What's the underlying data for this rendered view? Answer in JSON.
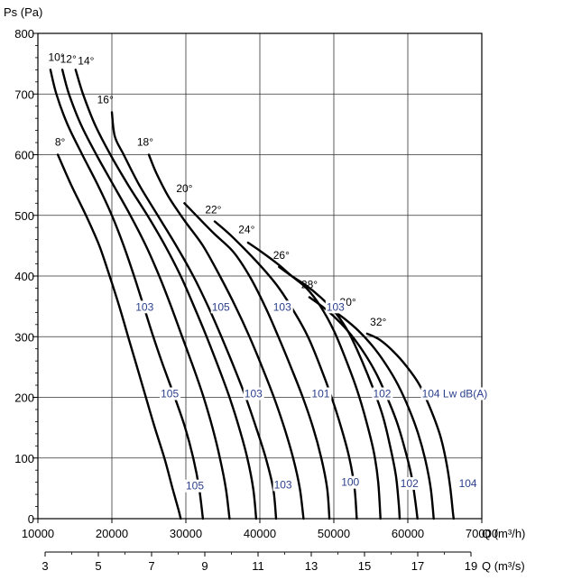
{
  "chart_data": {
    "type": "line",
    "title": "",
    "ylabel": "Ps  (Pa)",
    "xlabel": "Q (m³/h)",
    "x2label": "Q (m³/s)",
    "xlim": [
      10000,
      70000
    ],
    "ylim": [
      0,
      800
    ],
    "x_ticks": [
      "10000",
      "20000",
      "30000",
      "40000",
      "50000",
      "60000",
      "70000"
    ],
    "y_ticks": [
      "0",
      "100",
      "200",
      "300",
      "400",
      "500",
      "600",
      "700",
      "800"
    ],
    "x2_ticks": [
      "3",
      "5",
      "7",
      "9",
      "11",
      "13",
      "15",
      "17",
      "19"
    ],
    "grid": true,
    "series": [
      {
        "name": "8°",
        "points": [
          [
            12700,
            600
          ],
          [
            14500,
            550
          ],
          [
            16500,
            500
          ],
          [
            18300,
            450
          ],
          [
            19700,
            400
          ],
          [
            21000,
            350
          ],
          [
            22200,
            300
          ],
          [
            23400,
            250
          ],
          [
            24600,
            200
          ],
          [
            25800,
            150
          ],
          [
            27100,
            100
          ],
          [
            28200,
            50
          ],
          [
            29000,
            15
          ],
          [
            29300,
            0
          ]
        ]
      },
      {
        "name": "10°",
        "points": [
          [
            11700,
            740
          ],
          [
            12500,
            700
          ],
          [
            14000,
            650
          ],
          [
            16000,
            600
          ],
          [
            18100,
            550
          ],
          [
            20000,
            500
          ],
          [
            21600,
            450
          ],
          [
            23000,
            400
          ],
          [
            24300,
            350
          ],
          [
            25600,
            300
          ],
          [
            27000,
            250
          ],
          [
            28500,
            200
          ],
          [
            29900,
            150
          ],
          [
            31000,
            100
          ],
          [
            31800,
            50
          ],
          [
            32300,
            0
          ]
        ]
      },
      {
        "name": "12°",
        "points": [
          [
            13300,
            740
          ],
          [
            14200,
            700
          ],
          [
            15800,
            650
          ],
          [
            17900,
            600
          ],
          [
            20200,
            550
          ],
          [
            22500,
            500
          ],
          [
            24600,
            450
          ],
          [
            26400,
            400
          ],
          [
            28000,
            350
          ],
          [
            29500,
            300
          ],
          [
            31000,
            250
          ],
          [
            32400,
            200
          ],
          [
            33600,
            150
          ],
          [
            34600,
            100
          ],
          [
            35400,
            50
          ],
          [
            35900,
            0
          ]
        ]
      },
      {
        "name": "14°",
        "points": [
          [
            15100,
            740
          ],
          [
            16100,
            700
          ],
          [
            17700,
            650
          ],
          [
            19800,
            600
          ],
          [
            22200,
            550
          ],
          [
            24800,
            500
          ],
          [
            27200,
            450
          ],
          [
            29300,
            400
          ],
          [
            31100,
            350
          ],
          [
            32800,
            300
          ],
          [
            34400,
            250
          ],
          [
            35900,
            200
          ],
          [
            37200,
            150
          ],
          [
            38300,
            100
          ],
          [
            39100,
            50
          ],
          [
            39500,
            0
          ]
        ]
      },
      {
        "name": "16°",
        "points": [
          [
            20000,
            670
          ],
          [
            20400,
            630
          ],
          [
            21600,
            600
          ],
          [
            23700,
            550
          ],
          [
            26200,
            500
          ],
          [
            28700,
            450
          ],
          [
            31000,
            400
          ],
          [
            33000,
            350
          ],
          [
            34800,
            300
          ],
          [
            36500,
            250
          ],
          [
            38100,
            200
          ],
          [
            39500,
            150
          ],
          [
            40800,
            100
          ],
          [
            41800,
            50
          ],
          [
            42200,
            0
          ]
        ]
      },
      {
        "name": "18°",
        "points": [
          [
            25000,
            600
          ],
          [
            26000,
            570
          ],
          [
            27700,
            530
          ],
          [
            29900,
            490
          ],
          [
            32300,
            450
          ],
          [
            34600,
            400
          ],
          [
            36700,
            350
          ],
          [
            38600,
            300
          ],
          [
            40300,
            250
          ],
          [
            41900,
            200
          ],
          [
            43300,
            150
          ],
          [
            44500,
            100
          ],
          [
            45400,
            50
          ],
          [
            45900,
            0
          ]
        ]
      },
      {
        "name": "20°",
        "points": [
          [
            29800,
            520
          ],
          [
            31400,
            500
          ],
          [
            33800,
            470
          ],
          [
            36400,
            440
          ],
          [
            38600,
            400
          ],
          [
            40700,
            350
          ],
          [
            42500,
            300
          ],
          [
            44200,
            250
          ],
          [
            45800,
            200
          ],
          [
            47200,
            150
          ],
          [
            48300,
            100
          ],
          [
            49100,
            50
          ],
          [
            49400,
            0
          ]
        ]
      },
      {
        "name": "22°",
        "points": [
          [
            33900,
            490
          ],
          [
            35800,
            470
          ],
          [
            38300,
            440
          ],
          [
            40600,
            410
          ],
          [
            42600,
            380
          ],
          [
            44700,
            340
          ],
          [
            46500,
            300
          ],
          [
            48200,
            250
          ],
          [
            49700,
            200
          ],
          [
            51000,
            150
          ],
          [
            52100,
            100
          ],
          [
            52800,
            50
          ],
          [
            53100,
            0
          ]
        ]
      },
      {
        "name": "24°",
        "points": [
          [
            38400,
            455
          ],
          [
            40200,
            440
          ],
          [
            42400,
            420
          ],
          [
            44300,
            400
          ],
          [
            46300,
            380
          ],
          [
            48200,
            350
          ],
          [
            50000,
            310
          ],
          [
            51700,
            260
          ],
          [
            53200,
            210
          ],
          [
            54400,
            160
          ],
          [
            55400,
            110
          ],
          [
            56000,
            60
          ],
          [
            56300,
            0
          ]
        ]
      },
      {
        "name": "26°",
        "points": [
          [
            42600,
            415
          ],
          [
            44300,
            400
          ],
          [
            46200,
            385
          ],
          [
            48200,
            365
          ],
          [
            50200,
            340
          ],
          [
            52100,
            305
          ],
          [
            53800,
            260
          ],
          [
            55300,
            215
          ],
          [
            56600,
            170
          ],
          [
            57600,
            120
          ],
          [
            58400,
            70
          ],
          [
            58800,
            20
          ],
          [
            58900,
            0
          ]
        ]
      },
      {
        "name": "28°",
        "points": [
          [
            46700,
            365
          ],
          [
            48400,
            350
          ],
          [
            50300,
            330
          ],
          [
            52200,
            305
          ],
          [
            54000,
            275
          ],
          [
            55700,
            240
          ],
          [
            57200,
            200
          ],
          [
            58500,
            160
          ],
          [
            59600,
            115
          ],
          [
            60500,
            70
          ],
          [
            61000,
            30
          ],
          [
            61300,
            0
          ]
        ]
      },
      {
        "name": "30°",
        "points": [
          [
            49700,
            345
          ],
          [
            51400,
            330
          ],
          [
            53300,
            310
          ],
          [
            55200,
            285
          ],
          [
            57000,
            255
          ],
          [
            58700,
            220
          ],
          [
            60200,
            180
          ],
          [
            61400,
            140
          ],
          [
            62400,
            95
          ],
          [
            63100,
            50
          ],
          [
            63500,
            0
          ]
        ]
      },
      {
        "name": "32°",
        "points": [
          [
            54500,
            305
          ],
          [
            56200,
            295
          ],
          [
            58100,
            275
          ],
          [
            59900,
            250
          ],
          [
            61600,
            220
          ],
          [
            63100,
            180
          ],
          [
            64300,
            140
          ],
          [
            65100,
            100
          ],
          [
            65700,
            55
          ],
          [
            66100,
            10
          ],
          [
            66200,
            0
          ]
        ]
      }
    ],
    "angle_labels": [
      {
        "text": "8°",
        "x": 12300,
        "y": 615
      },
      {
        "text": "10°",
        "x": 11400,
        "y": 755
      },
      {
        "text": "12°",
        "x": 13000,
        "y": 752
      },
      {
        "text": "14°",
        "x": 15400,
        "y": 749
      },
      {
        "text": "16°",
        "x": 18000,
        "y": 685
      },
      {
        "text": "18°",
        "x": 23400,
        "y": 615
      },
      {
        "text": "20°",
        "x": 28700,
        "y": 538
      },
      {
        "text": "22°",
        "x": 32600,
        "y": 503
      },
      {
        "text": "24°",
        "x": 37100,
        "y": 471
      },
      {
        "text": "26°",
        "x": 41800,
        "y": 428
      },
      {
        "text": "28°",
        "x": 45600,
        "y": 380
      },
      {
        "text": "30°",
        "x": 50800,
        "y": 351
      },
      {
        "text": "32°",
        "x": 54900,
        "y": 318
      }
    ],
    "lw_labels": [
      {
        "text": "103",
        "x": 23200,
        "y": 343
      },
      {
        "text": "105",
        "x": 33500,
        "y": 343
      },
      {
        "text": "103",
        "x": 41800,
        "y": 343
      },
      {
        "text": "103",
        "x": 49000,
        "y": 343
      },
      {
        "text": "105",
        "x": 26600,
        "y": 200
      },
      {
        "text": "103",
        "x": 37900,
        "y": 200
      },
      {
        "text": "101",
        "x": 47000,
        "y": 200
      },
      {
        "text": "102",
        "x": 55300,
        "y": 200
      },
      {
        "text": "104 Lw dB(A)",
        "x": 61900,
        "y": 200
      },
      {
        "text": "105",
        "x": 30000,
        "y": 48
      },
      {
        "text": "103",
        "x": 41900,
        "y": 50
      },
      {
        "text": "100",
        "x": 51000,
        "y": 54
      },
      {
        "text": "102",
        "x": 59000,
        "y": 52
      },
      {
        "text": "104",
        "x": 66900,
        "y": 52
      }
    ]
  }
}
